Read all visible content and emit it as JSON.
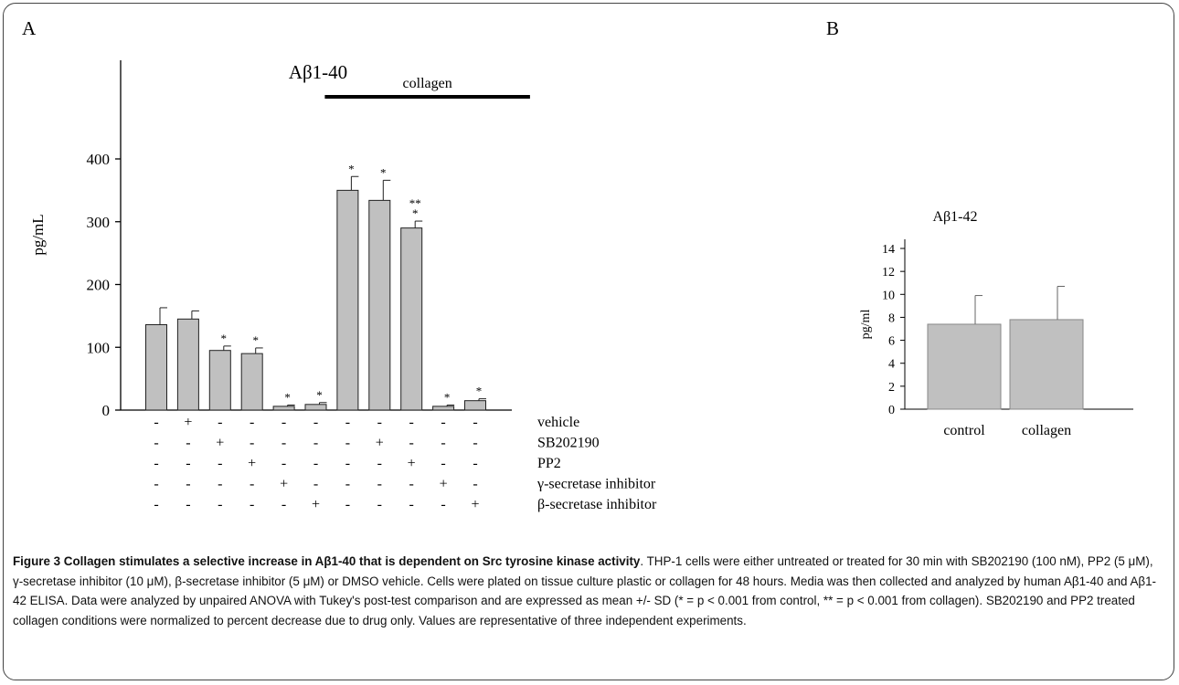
{
  "figure": {
    "caption_title": "Figure 3 Collagen stimulates a selective increase in Aβ1-40 that is dependent on Src tyrosine kinase activity",
    "caption_text": ". THP-1 cells were either untreated or treated for 30 min with SB202190 (100 nM), PP2 (5 μM), γ-secretase inhibitor (10 μM), β-secretase inhibitor (5 μM) or DMSO vehicle. Cells were plated on tissue culture plastic or collagen for 48 hours. Media was then collected and analyzed by human Aβ1-40 and Aβ1-42 ELISA. Data were analyzed by unpaired ANOVA with Tukey's post-test comparison and are expressed as mean +/- SD (* = p < 0.001 from control, ** = p < 0.001 from collagen). SB202190 and PP2 treated collagen conditions were normalized to percent decrease due to drug only. Values are representative of three independent experiments."
  },
  "chart_data": [
    {
      "type": "bar",
      "panel": "A",
      "title": "Aβ1-40",
      "ylabel": "pg/mL",
      "ylim": [
        0,
        450
      ],
      "yticks": [
        0,
        100,
        200,
        300,
        400
      ],
      "bar_color": "#c0c0c0",
      "bracket_label": "collagen",
      "bracket_bars": [
        6,
        11
      ],
      "values": [
        136,
        145,
        95,
        90,
        6,
        9,
        350,
        334,
        290,
        6,
        15
      ],
      "errors": [
        27,
        13,
        7,
        9,
        2,
        3,
        22,
        32,
        11,
        2,
        3
      ],
      "significance": [
        "",
        "",
        "*",
        "*",
        "*",
        "*",
        "*",
        "*",
        "**\n*",
        "*",
        "*"
      ],
      "treatments": [
        {
          "label": "vehicle",
          "signs": [
            "-",
            "+",
            "-",
            "-",
            "-",
            "-",
            "-",
            "-",
            "-",
            "-",
            "-"
          ]
        },
        {
          "label": "SB202190",
          "signs": [
            "-",
            "-",
            "+",
            "-",
            "-",
            "-",
            "-",
            "+",
            "-",
            "-",
            "-"
          ]
        },
        {
          "label": "PP2",
          "signs": [
            "-",
            "-",
            "-",
            "+",
            "-",
            "-",
            "-",
            "-",
            "+",
            "-",
            "-"
          ]
        },
        {
          "label": "γ-secretase inhibitor",
          "signs": [
            "-",
            "-",
            "-",
            "-",
            "+",
            "-",
            "-",
            "-",
            "-",
            "+",
            "-"
          ]
        },
        {
          "label": "β-secretase inhibitor",
          "signs": [
            "-",
            "-",
            "-",
            "-",
            "-",
            "+",
            "-",
            "-",
            "-",
            "-",
            "+"
          ]
        }
      ]
    },
    {
      "type": "bar",
      "panel": "B",
      "title": "Aβ1-42",
      "ylabel": "pg/ml",
      "ylim": [
        0,
        14
      ],
      "yticks": [
        0,
        2,
        4,
        6,
        8,
        10,
        12,
        14
      ],
      "bar_color": "#c0c0c0",
      "categories": [
        "control",
        "collagen"
      ],
      "values": [
        7.4,
        7.8
      ],
      "errors": [
        2.5,
        2.9
      ]
    }
  ]
}
